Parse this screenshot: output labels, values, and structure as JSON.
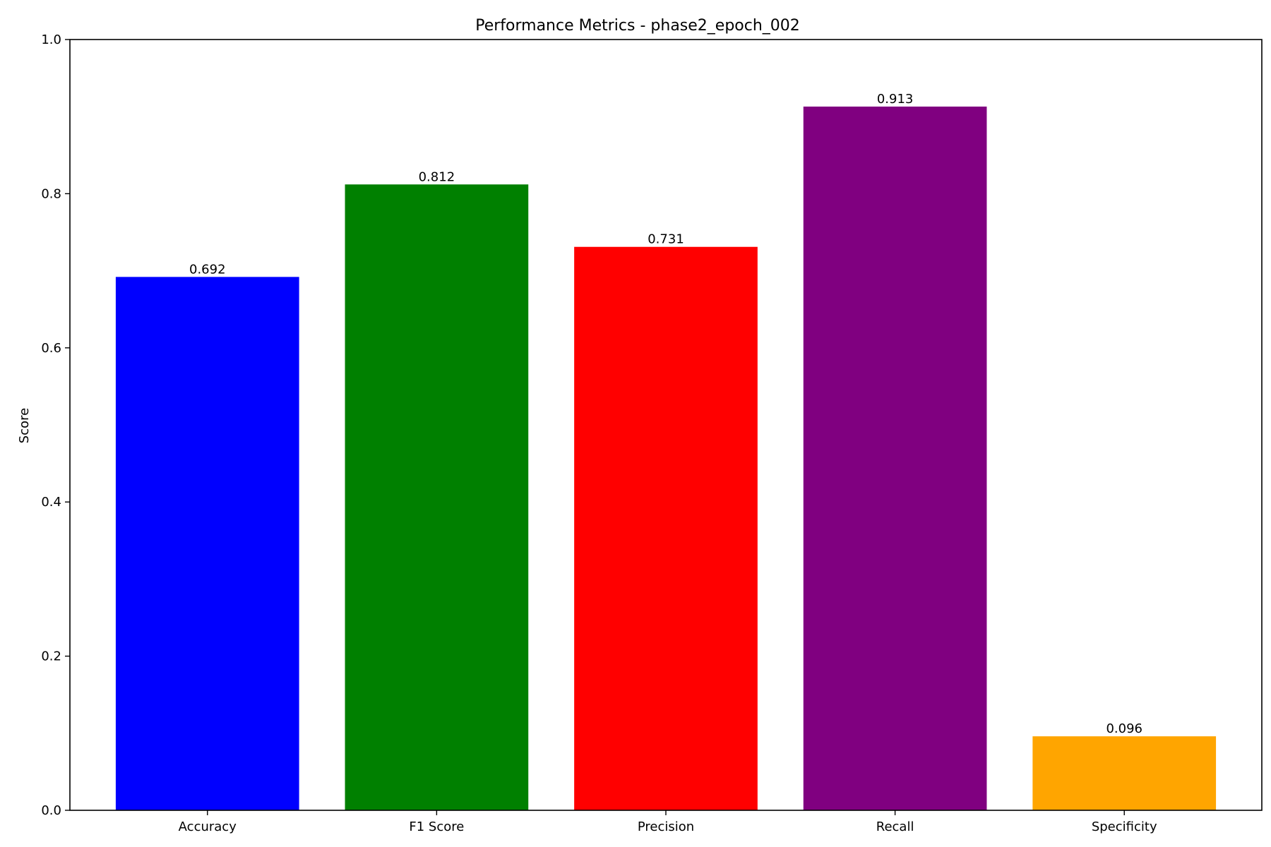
{
  "chart_data": {
    "type": "bar",
    "title": "Performance Metrics - phase2_epoch_002",
    "xlabel": "",
    "ylabel": "Score",
    "categories": [
      "Accuracy",
      "F1 Score",
      "Precision",
      "Recall",
      "Specificity"
    ],
    "values": [
      0.692,
      0.812,
      0.731,
      0.913,
      0.096
    ],
    "value_labels": [
      "0.692",
      "0.812",
      "0.731",
      "0.913",
      "0.096"
    ],
    "colors": [
      "#0000ff",
      "#008000",
      "#ff0000",
      "#800080",
      "#ffa500"
    ],
    "ylim": [
      0.0,
      1.0
    ],
    "yticks": [
      0.0,
      0.2,
      0.4,
      0.6,
      0.8,
      1.0
    ],
    "ytick_labels": [
      "0.0",
      "0.2",
      "0.4",
      "0.6",
      "0.8",
      "1.0"
    ],
    "grid": false,
    "legend": "none"
  }
}
